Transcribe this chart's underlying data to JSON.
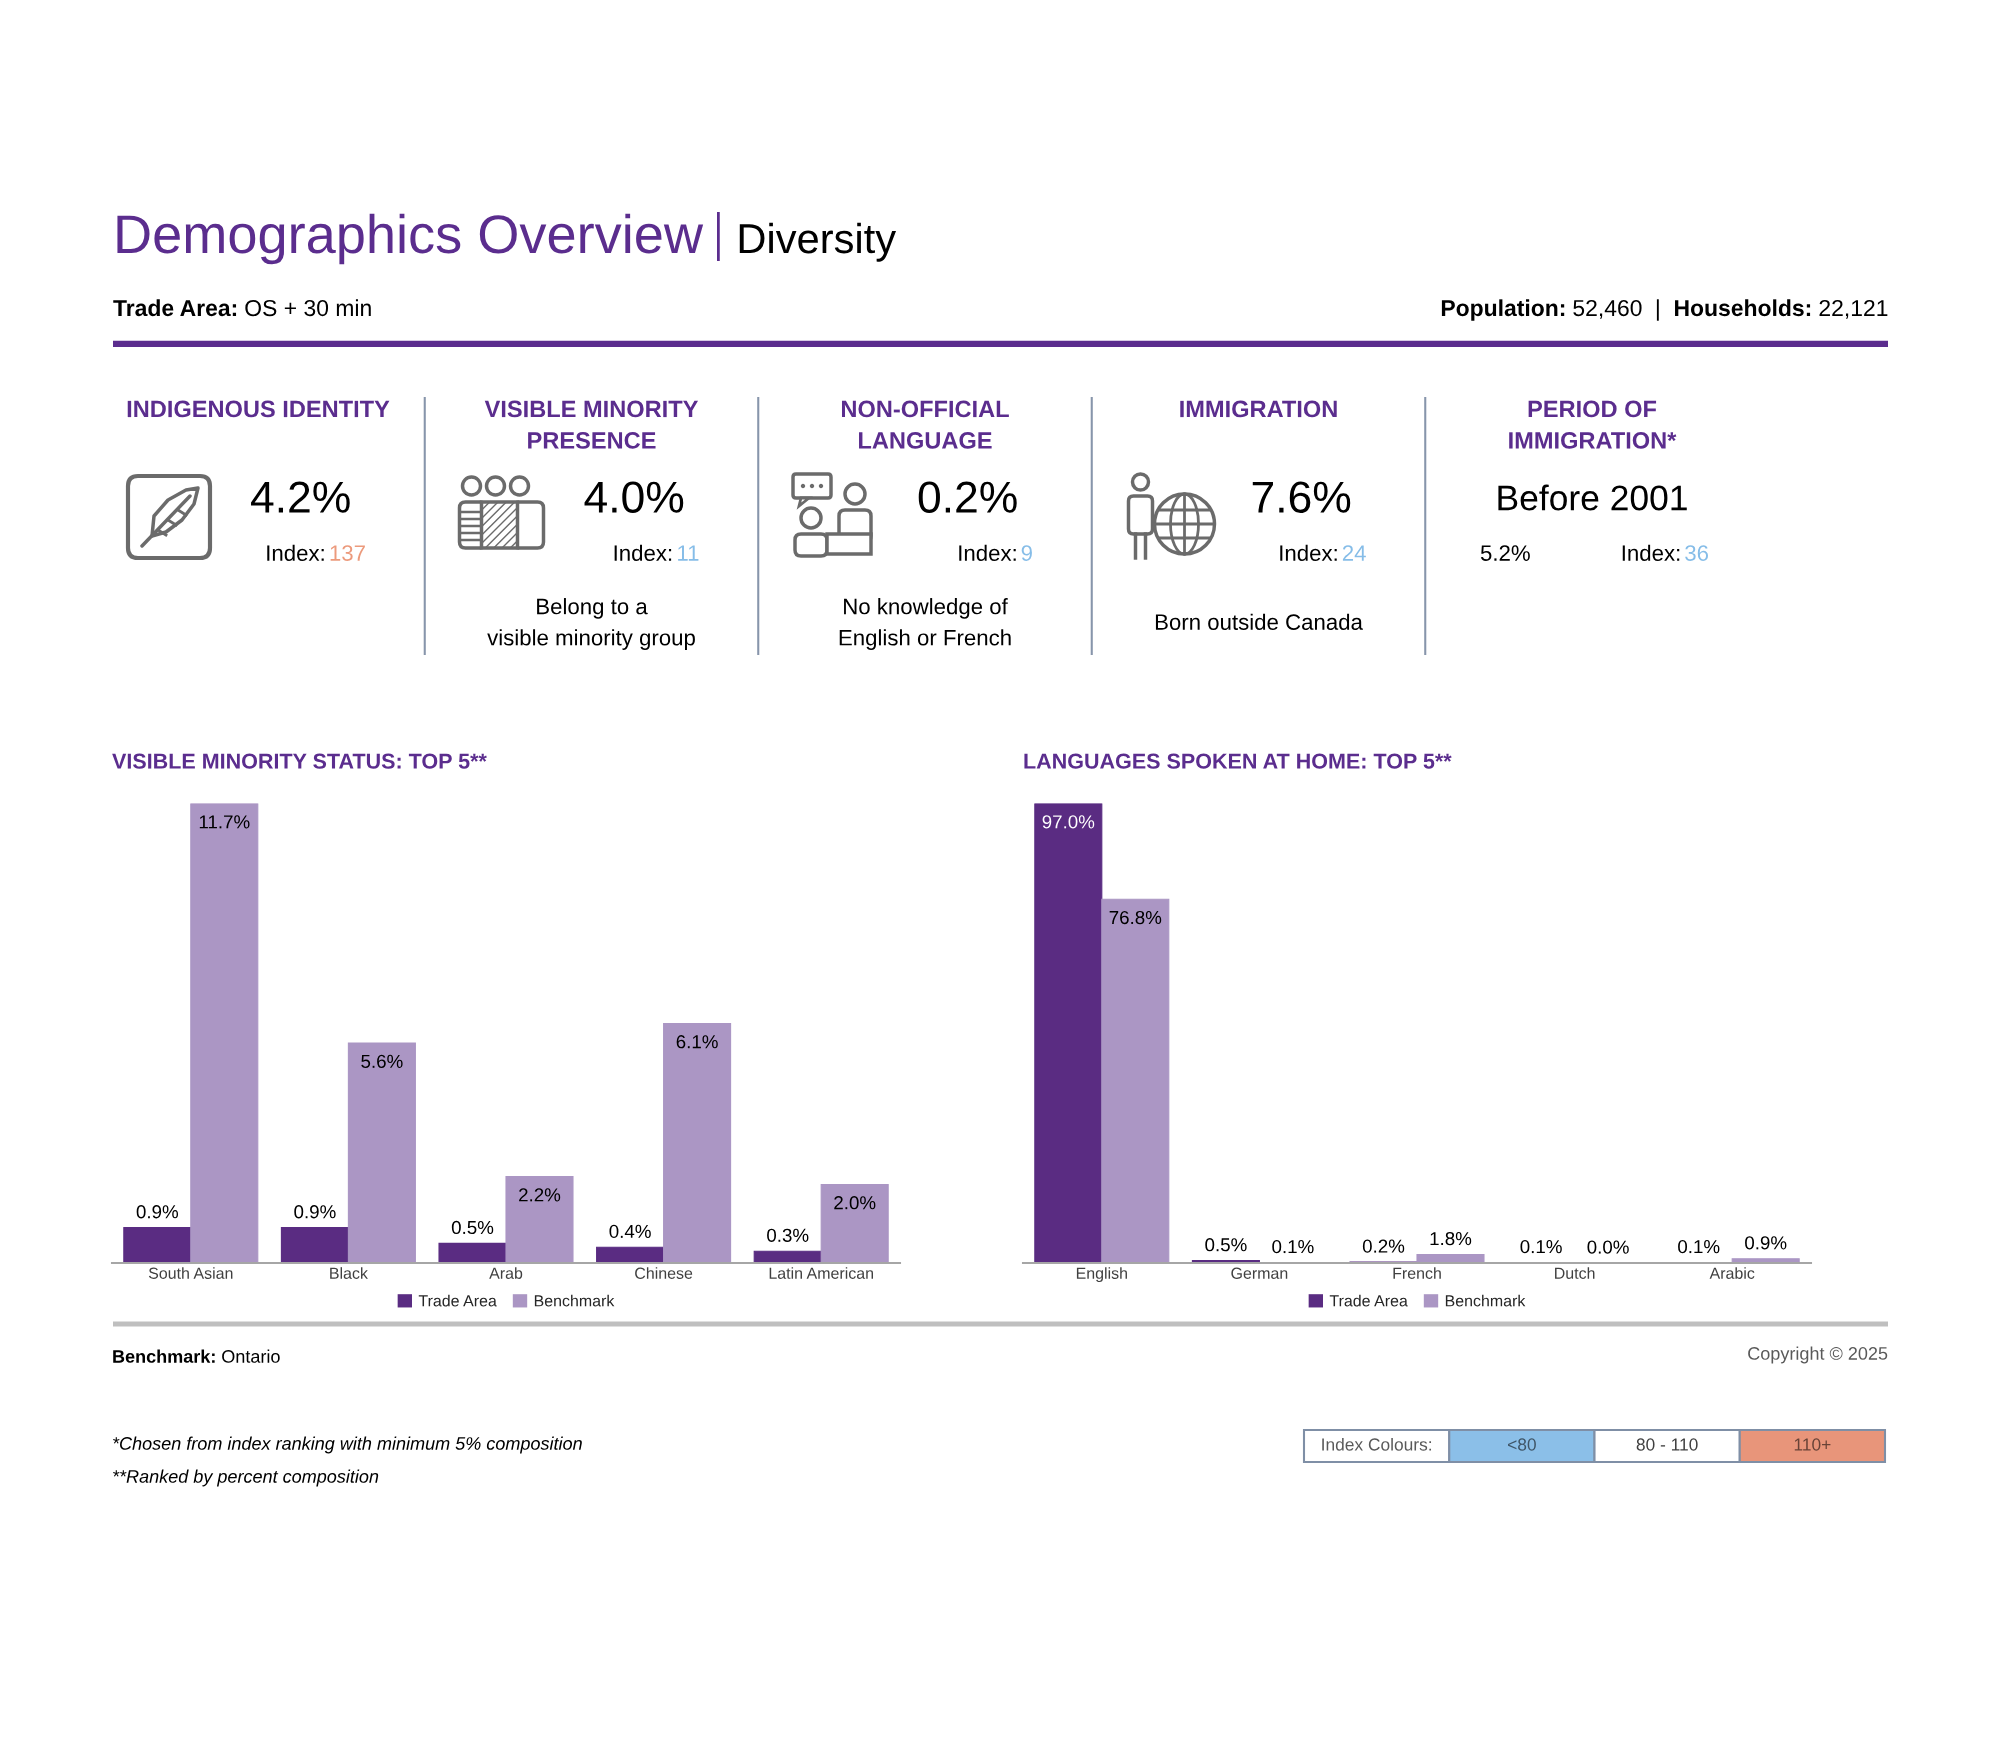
{
  "chart_data": [
    {
      "type": "other",
      "title": "Demographics Overview",
      "subtitle": "Diversity",
      "categories": [
        "INDIGENOUS IDENTITY",
        "VISIBLE MINORITY PRESENCE",
        "NON-OFFICIAL LANGUAGE",
        "IMMIGRATION",
        "PERIOD OF IMMIGRATION*"
      ],
      "series": [
        {
          "values": [
            4.2,
            4.0,
            0.2,
            7.6,
            5.2
          ],
          "value_labels": [
            "4.2%",
            "4.0%",
            "0.2%",
            "7.6%",
            "5.2%"
          ],
          "color": "#000000"
        },
        {
          "name": "Index:",
          "values": [
            137,
            11,
            9,
            24,
            36
          ],
          "value_labels": [
            "137",
            "11",
            "9",
            "24",
            "36"
          ],
          "colors": [
            "#ec9a7c",
            "#86bde8",
            "#86bde8",
            "#86bde8",
            "#86bde8"
          ]
        }
      ],
      "annotations": [
        "Trade Area: OS + 30 min",
        "Population: 52,460 | Households: 22,121",
        {
          "text": "Belong to a\nvisible minority group",
          "x": "VISIBLE MINORITY PRESENCE"
        },
        {
          "text": "No knowledge of\nEnglish or French",
          "x": "NON-OFFICIAL LANGUAGE"
        },
        {
          "text": "Born outside Canada",
          "x": "IMMIGRATION"
        },
        {
          "text": "Before 2001",
          "x": "PERIOD OF IMMIGRATION*"
        },
        "Benchmark: Ontario",
        "Copyright © 2025",
        "*Chosen from index ranking with minimum 5% composition",
        "**Ranked by percent composition"
      ]
    },
    {
      "type": "bar",
      "title": "VISIBLE MINORITY STATUS: TOP 5**",
      "categories": [
        "South Asian",
        "Black",
        "Arab",
        "Chinese",
        "Latin American"
      ],
      "series": [
        {
          "name": "Trade Area",
          "color": "#5a2c82",
          "values": [
            0.9,
            0.9,
            0.5,
            0.4,
            0.3
          ],
          "value_labels": [
            "0.9%",
            "0.9%",
            "0.5%",
            "0.4%",
            "0.3%"
          ]
        },
        {
          "name": "Benchmark",
          "color": "#ab96c4",
          "values": [
            11.7,
            5.6,
            2.2,
            6.1,
            2.0
          ],
          "value_labels": [
            "11.7%",
            "5.6%",
            "2.2%",
            "6.1%",
            "2.0%"
          ]
        }
      ],
      "legend": "bottom"
    },
    {
      "type": "bar",
      "title": "LANGUAGES SPOKEN AT HOME: TOP 5**",
      "categories": [
        "English",
        "German",
        "French",
        "Dutch",
        "Arabic"
      ],
      "series": [
        {
          "name": "Trade Area",
          "color": "#5a2c82",
          "values": [
            97.0,
            0.5,
            0.2,
            0.1,
            0.1
          ],
          "value_labels": [
            "97.0%",
            "0.5%",
            "0.2%",
            "0.1%",
            "0.1%"
          ]
        },
        {
          "name": "Benchmark",
          "color": "#ab96c4",
          "values": [
            76.8,
            0.1,
            1.8,
            0.0,
            0.9
          ],
          "value_labels": [
            "76.8%",
            "0.1%",
            "1.8%",
            "0.0%",
            "0.9%"
          ]
        }
      ],
      "legend": "bottom"
    },
    {
      "type": "other",
      "title": "Index Colours:",
      "categories": [
        "<80",
        "80 - 110",
        "110+"
      ],
      "colors": [
        "#8bbfe8",
        "#ffffff",
        "#e8957a"
      ]
    }
  ]
}
